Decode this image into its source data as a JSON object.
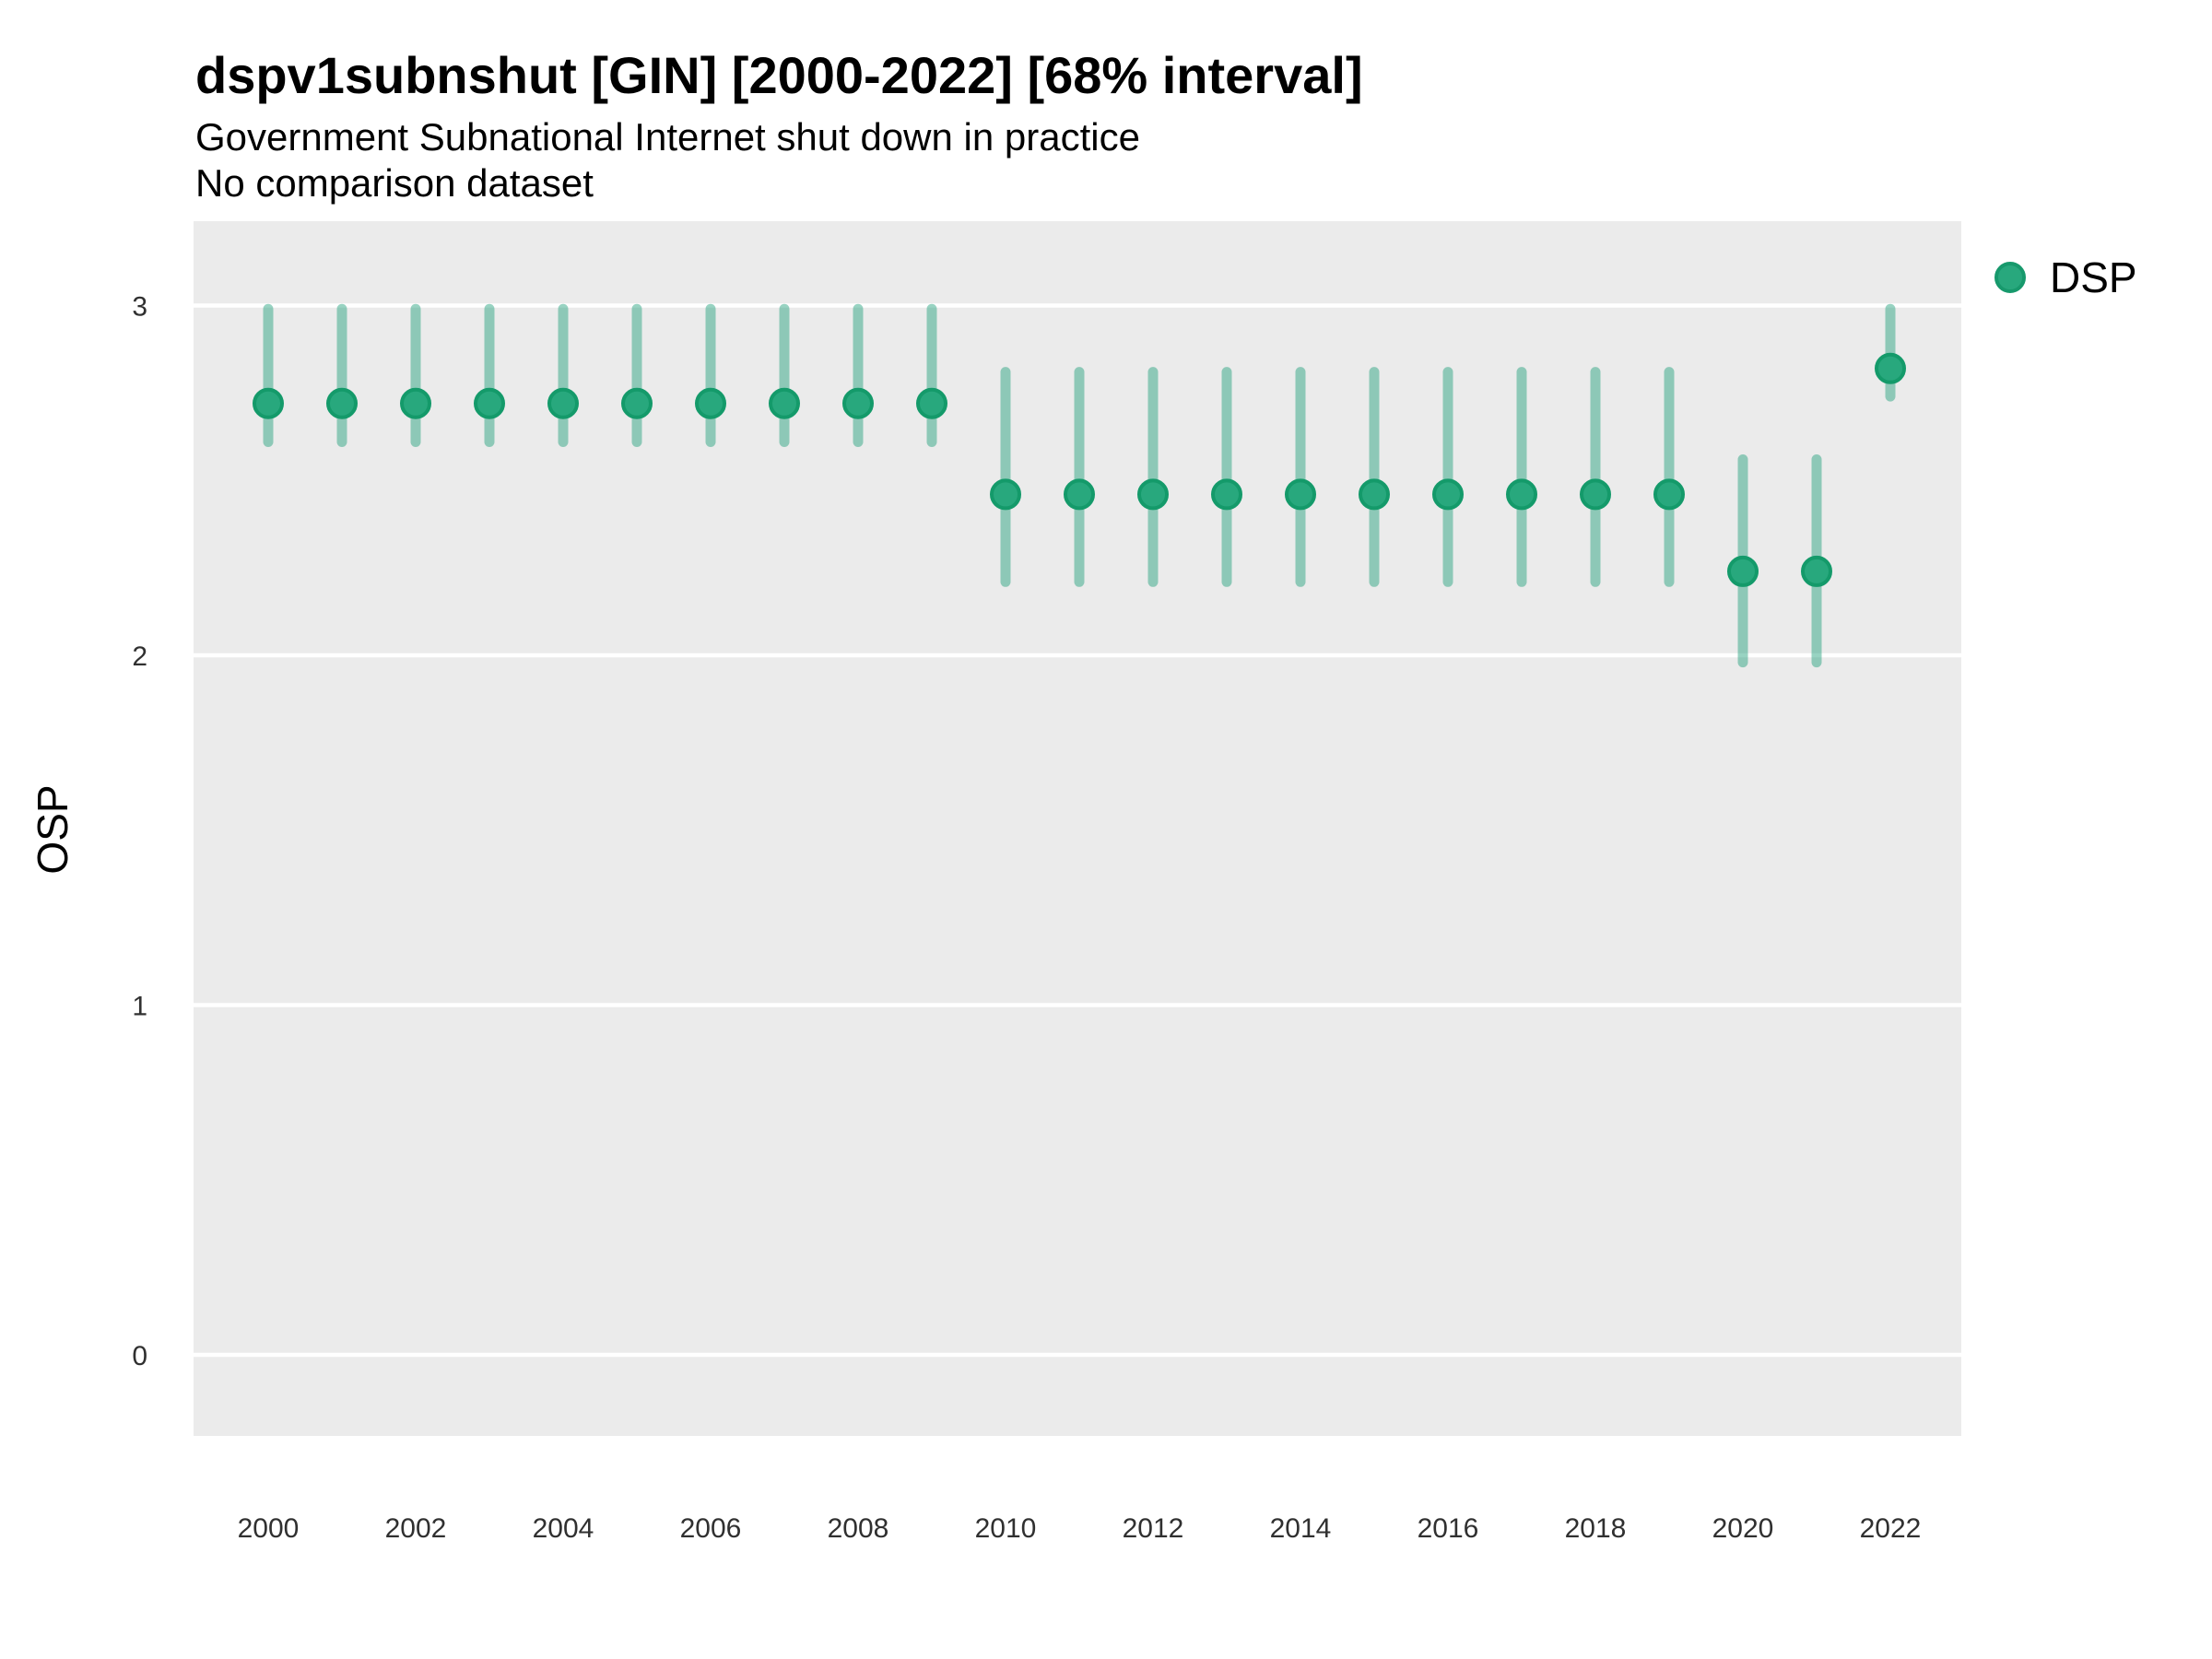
{
  "header": {
    "title": "dspv1subnshut [GIN] [2000-2022] [68% interval]",
    "subtitle": "Government Subnational Internet shut down in practice",
    "comparison_note": "No comparison dataset"
  },
  "chart_data": {
    "type": "pointrange",
    "title": "dspv1subnshut [GIN] [2000-2022] [68% interval]",
    "subtitle": "Government Subnational Internet shut down in practice",
    "note": "No comparison dataset",
    "interval": "68%",
    "xlabel": "",
    "ylabel": "OSP",
    "grid": "major-horizontal, white on gray panel",
    "legend": {
      "position": "right",
      "entries": [
        {
          "label": "DSP",
          "color": "#28a87d"
        }
      ]
    },
    "x_tick_labels": [
      "2000",
      "2002",
      "2004",
      "2006",
      "2008",
      "2010",
      "2012",
      "2014",
      "2016",
      "2018",
      "2020",
      "2022"
    ],
    "y_tick_labels": [
      "0",
      "1",
      "2",
      "3"
    ],
    "xlim": [
      1999,
      2023
    ],
    "ylim": [
      -0.23,
      3.24
    ],
    "series": [
      {
        "name": "DSP",
        "point_color": "#28a87d",
        "point_stroke": "#149a6a",
        "interval_color": "#1b9e77",
        "interval_opacity": 0.45,
        "points": [
          {
            "year": 2000,
            "est": 2.72,
            "lo": 2.61,
            "hi": 2.99
          },
          {
            "year": 2001,
            "est": 2.72,
            "lo": 2.61,
            "hi": 2.99
          },
          {
            "year": 2002,
            "est": 2.72,
            "lo": 2.61,
            "hi": 2.99
          },
          {
            "year": 2003,
            "est": 2.72,
            "lo": 2.61,
            "hi": 2.99
          },
          {
            "year": 2004,
            "est": 2.72,
            "lo": 2.61,
            "hi": 2.99
          },
          {
            "year": 2005,
            "est": 2.72,
            "lo": 2.61,
            "hi": 2.99
          },
          {
            "year": 2006,
            "est": 2.72,
            "lo": 2.61,
            "hi": 2.99
          },
          {
            "year": 2007,
            "est": 2.72,
            "lo": 2.61,
            "hi": 2.99
          },
          {
            "year": 2008,
            "est": 2.72,
            "lo": 2.61,
            "hi": 2.99
          },
          {
            "year": 2009,
            "est": 2.72,
            "lo": 2.61,
            "hi": 2.99
          },
          {
            "year": 2010,
            "est": 2.46,
            "lo": 2.21,
            "hi": 2.81
          },
          {
            "year": 2011,
            "est": 2.46,
            "lo": 2.21,
            "hi": 2.81
          },
          {
            "year": 2012,
            "est": 2.46,
            "lo": 2.21,
            "hi": 2.81
          },
          {
            "year": 2013,
            "est": 2.46,
            "lo": 2.21,
            "hi": 2.81
          },
          {
            "year": 2014,
            "est": 2.46,
            "lo": 2.21,
            "hi": 2.81
          },
          {
            "year": 2015,
            "est": 2.46,
            "lo": 2.21,
            "hi": 2.81
          },
          {
            "year": 2016,
            "est": 2.46,
            "lo": 2.21,
            "hi": 2.81
          },
          {
            "year": 2017,
            "est": 2.46,
            "lo": 2.21,
            "hi": 2.81
          },
          {
            "year": 2018,
            "est": 2.46,
            "lo": 2.21,
            "hi": 2.81
          },
          {
            "year": 2019,
            "est": 2.46,
            "lo": 2.21,
            "hi": 2.81
          },
          {
            "year": 2020,
            "est": 2.24,
            "lo": 1.98,
            "hi": 2.56
          },
          {
            "year": 2021,
            "est": 2.24,
            "lo": 1.98,
            "hi": 2.56
          },
          {
            "year": 2022,
            "est": 2.82,
            "lo": 2.74,
            "hi": 2.99
          }
        ]
      }
    ]
  },
  "colors": {
    "panel_bg": "#ebebeb",
    "gridline": "#ffffff",
    "tick_text": "#303030",
    "title_text": "#000000"
  }
}
